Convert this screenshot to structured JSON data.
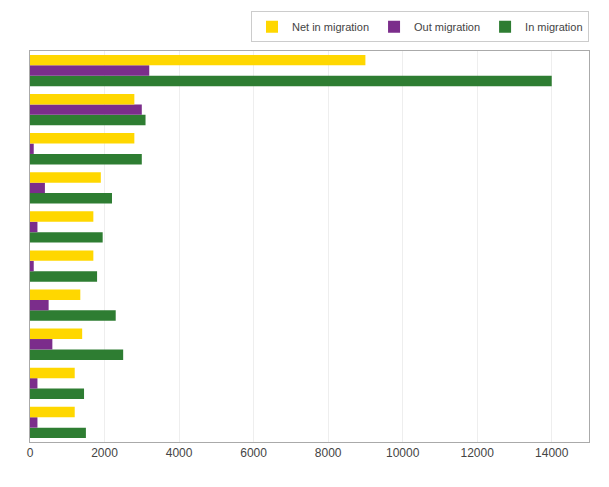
{
  "chart_data": {
    "type": "bar",
    "orientation": "horizontal",
    "categories": [
      null,
      null,
      null,
      null,
      null,
      null,
      null,
      null,
      null,
      null
    ],
    "series": [
      {
        "name": "Net in migration",
        "color": "#FFD700",
        "values": [
          1200,
          1200,
          1400,
          1350,
          1700,
          1700,
          1900,
          2800,
          2800,
          9000
        ]
      },
      {
        "name": "Out migration",
        "color": "#7B2D8B",
        "values": [
          200,
          200,
          600,
          500,
          100,
          200,
          400,
          100,
          3000,
          3200
        ]
      },
      {
        "name": "In migration",
        "color": "#2E7D32",
        "values": [
          1500,
          1450,
          2500,
          2300,
          1800,
          1950,
          2200,
          3000,
          3100,
          14000
        ]
      }
    ],
    "xlim": [
      0,
      15000
    ],
    "xticks": [
      0,
      2000,
      4000,
      6000,
      8000,
      10000,
      12000,
      14000
    ],
    "grid": true,
    "legend": "upper right",
    "tick_labels": "x"
  }
}
